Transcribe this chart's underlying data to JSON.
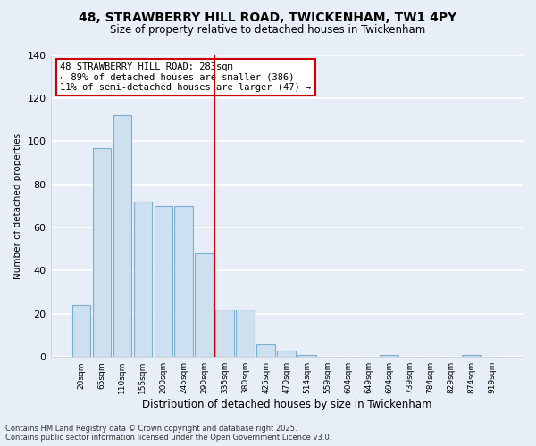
{
  "title1": "48, STRAWBERRY HILL ROAD, TWICKENHAM, TW1 4PY",
  "title2": "Size of property relative to detached houses in Twickenham",
  "xlabel": "Distribution of detached houses by size in Twickenham",
  "ylabel": "Number of detached properties",
  "bar_labels": [
    "20sqm",
    "65sqm",
    "110sqm",
    "155sqm",
    "200sqm",
    "245sqm",
    "290sqm",
    "335sqm",
    "380sqm",
    "425sqm",
    "470sqm",
    "514sqm",
    "559sqm",
    "604sqm",
    "649sqm",
    "694sqm",
    "739sqm",
    "784sqm",
    "829sqm",
    "874sqm",
    "919sqm"
  ],
  "bar_values": [
    24,
    97,
    112,
    72,
    70,
    70,
    48,
    22,
    22,
    6,
    3,
    1,
    0,
    0,
    0,
    1,
    0,
    0,
    0,
    1,
    0
  ],
  "bar_color": "#cce0f0",
  "bar_edge_color": "#7ab0d4",
  "vline_x": 6.5,
  "vline_color": "#cc0000",
  "annotation_text": "48 STRAWBERRY HILL ROAD: 283sqm\n← 89% of detached houses are smaller (386)\n11% of semi-detached houses are larger (47) →",
  "annotation_box_color": "#ffffff",
  "annotation_box_edge_color": "#cc0000",
  "ylim": [
    0,
    140
  ],
  "yticks": [
    0,
    20,
    40,
    60,
    80,
    100,
    120,
    140
  ],
  "bg_color": "#e8eef8",
  "grid_color": "#ffffff",
  "footnote1": "Contains HM Land Registry data © Crown copyright and database right 2025.",
  "footnote2": "Contains public sector information licensed under the Open Government Licence v3.0."
}
